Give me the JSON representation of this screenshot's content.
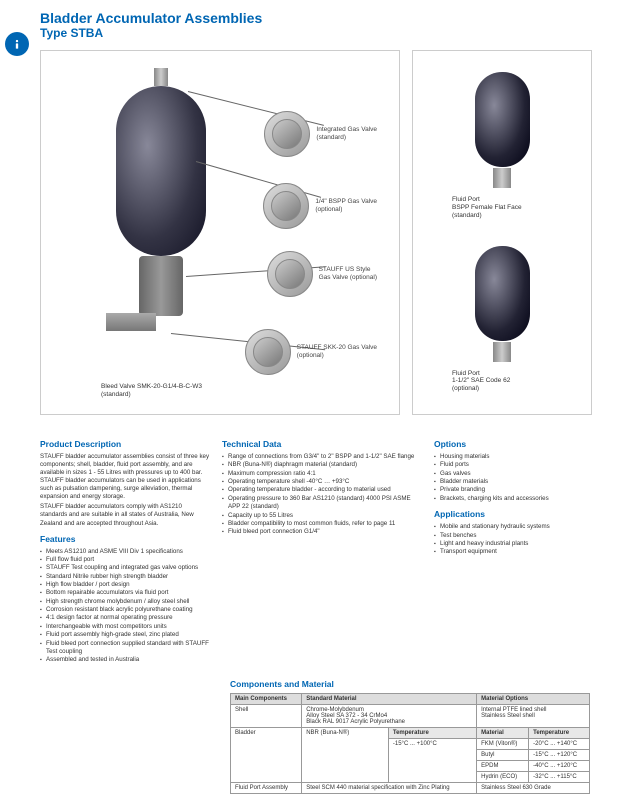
{
  "title_line1": "Bladder Accumulator Assemblies",
  "title_line2": "Type STBA",
  "callouts": {
    "c1": "Integrated Gas Valve\n(standard)",
    "c2": "1/4\" BSPP Gas Valve\n(optional)",
    "c3": "STAUFF US Style\nGas Valve (optional)",
    "c4": "STAUFF SKK-20 Gas Valve\n(optional)",
    "bottom": "Bleed Valve SMK-20-G1/4-B-C-W3\n(standard)"
  },
  "side_labels": {
    "top": "Fluid Port\nBSPP Female Flat Face\n(standard)",
    "bottom": "Fluid Port\n1-1/2\" SAE Code 62\n(optional)"
  },
  "desc": {
    "head": "Product Description",
    "p1": "STAUFF bladder accumulator assemblies consist of three key components; shell, bladder, fluid port assembly, and are available in sizes 1 - 55 Litres with pressures up to 400 bar. STAUFF bladder accumulators can be used in applications such as pulsation dampening, surge alleviation, thermal expansion and energy storage.",
    "p2": "STAUFF bladder accumulators comply with AS1210 standards and are suitable in all states of Australia, New Zealand and are accepted throughout Asia."
  },
  "features": {
    "head": "Features",
    "items": [
      "Meets AS1210 and ASME VIII Div 1 specifications",
      "Full flow fluid port",
      "STAUFF Test coupling and integrated gas valve options",
      "Standard Nitrile rubber high strength bladder",
      "High flow bladder / port design",
      "Bottom repairable accumulators via fluid port",
      "High strength chrome molybdenum / alloy steel shell",
      "Corrosion resistant black acrylic polyurethane coating",
      "4:1 design factor at normal operating pressure",
      "Interchangeable with most competitors units",
      "Fluid port assembly high-grade steel, zinc plated",
      "Fluid bleed port connection supplied standard with STAUFF Test coupling",
      "Assembled and tested in Australia"
    ]
  },
  "tech": {
    "head": "Technical Data",
    "items": [
      "Range of connections from G3/4\" to 2\" BSPP and 1-1/2\" SAE flange",
      "NBR (Buna-N®) diaphragm material (standard)",
      "Maximum compression ratio 4:1",
      "Operating temperature shell -40°C … +93°C",
      "Operating temperature bladder - according to material used",
      "Operating pressure to 360 Bar AS1210 (standard) 4000 PSI ASME APP 22 (standard)",
      "Capacity up to 55 Litres",
      "Bladder compatibility to most common fluids, refer to page 11",
      "Fluid bleed port connection G1/4\""
    ]
  },
  "options": {
    "head": "Options",
    "items": [
      "Housing materials",
      "Fluid ports",
      "Gas valves",
      "Bladder materials",
      "Private branding",
      "Brackets, charging kits and accessories"
    ]
  },
  "apps": {
    "head": "Applications",
    "items": [
      "Mobile and stationary hydraulic systems",
      "Test benches",
      "Light and heavy industrial plants",
      "Transport equipment"
    ]
  },
  "table": {
    "head": "Components and Material",
    "h_main": "Main Components",
    "h_std": "Standard Material",
    "h_opt": "Material Options",
    "h_material": "Material",
    "h_temp": "Temperature",
    "shell_name": "Shell",
    "shell_std": "Chrome-Molybdenum\nAlloy Steel SA 372 - 34 CrMo4\nBlack RAL 9017 Acrylic Polyurethane",
    "shell_opt": "Internal PTFE lined shell\nStainless Steel shell",
    "bladder_name": "Bladder",
    "bladder_std": "NBR (Buna-N®)",
    "bladder_temp": "-15°C ... +100°C",
    "r1m": "FKM (Viton®)",
    "r1t": "-20°C ... +140°C",
    "r2m": "Butyl",
    "r2t": "-15°C ... +120°C",
    "r3m": "EPDM",
    "r3t": "-40°C ... +120°C",
    "r4m": "Hydrin (ECO)",
    "r4t": "-32°C ... +115°C",
    "port_name": "Fluid Port Assembly",
    "port_std": "Steel SCM 440 material specification with Zinc Plating",
    "port_opt": "Stainless Steel 630 Grade"
  }
}
